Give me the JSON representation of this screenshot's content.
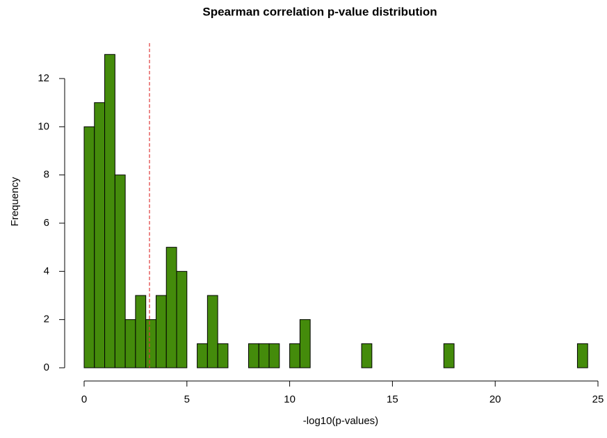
{
  "chart_data": {
    "type": "histogram",
    "title": "Spearman correlation p-value distribution",
    "xlabel": "-log10(p-values)",
    "ylabel": "Frequency",
    "bins": [
      0,
      0.5,
      1,
      1.5,
      2,
      2.5,
      3,
      3.5,
      4,
      4.5,
      5,
      5.5,
      6,
      6.5,
      7,
      7.5,
      8,
      8.5,
      9,
      9.5,
      10,
      10.5,
      11,
      11.5,
      12,
      12.5,
      13,
      13.5,
      14,
      14.5,
      15,
      15.5,
      16,
      16.5,
      17,
      17.5,
      18,
      18.5,
      19,
      19.5,
      20,
      20.5,
      21,
      21.5,
      22,
      22.5,
      23,
      23.5,
      24,
      24.5
    ],
    "values": [
      10,
      11,
      13,
      8,
      2,
      3,
      2,
      3,
      5,
      4,
      0,
      1,
      3,
      1,
      0,
      0,
      1,
      1,
      1,
      0,
      1,
      2,
      0,
      0,
      0,
      0,
      0,
      1,
      0,
      0,
      0,
      0,
      0,
      0,
      0,
      1,
      0,
      0,
      0,
      0,
      0,
      0,
      0,
      0,
      0,
      0,
      0,
      0,
      1
    ],
    "color": "#448b0b",
    "edge_color": "#000000",
    "vline": {
      "value": 3.18,
      "color": "#e03a3a",
      "style": "dashed"
    },
    "xlim": [
      0,
      25
    ],
    "xticks": [
      0,
      5,
      10,
      15,
      20,
      25
    ],
    "ylim": [
      0,
      13
    ],
    "yticks": [
      0,
      2,
      4,
      6,
      8,
      10,
      12
    ],
    "grid": false
  }
}
